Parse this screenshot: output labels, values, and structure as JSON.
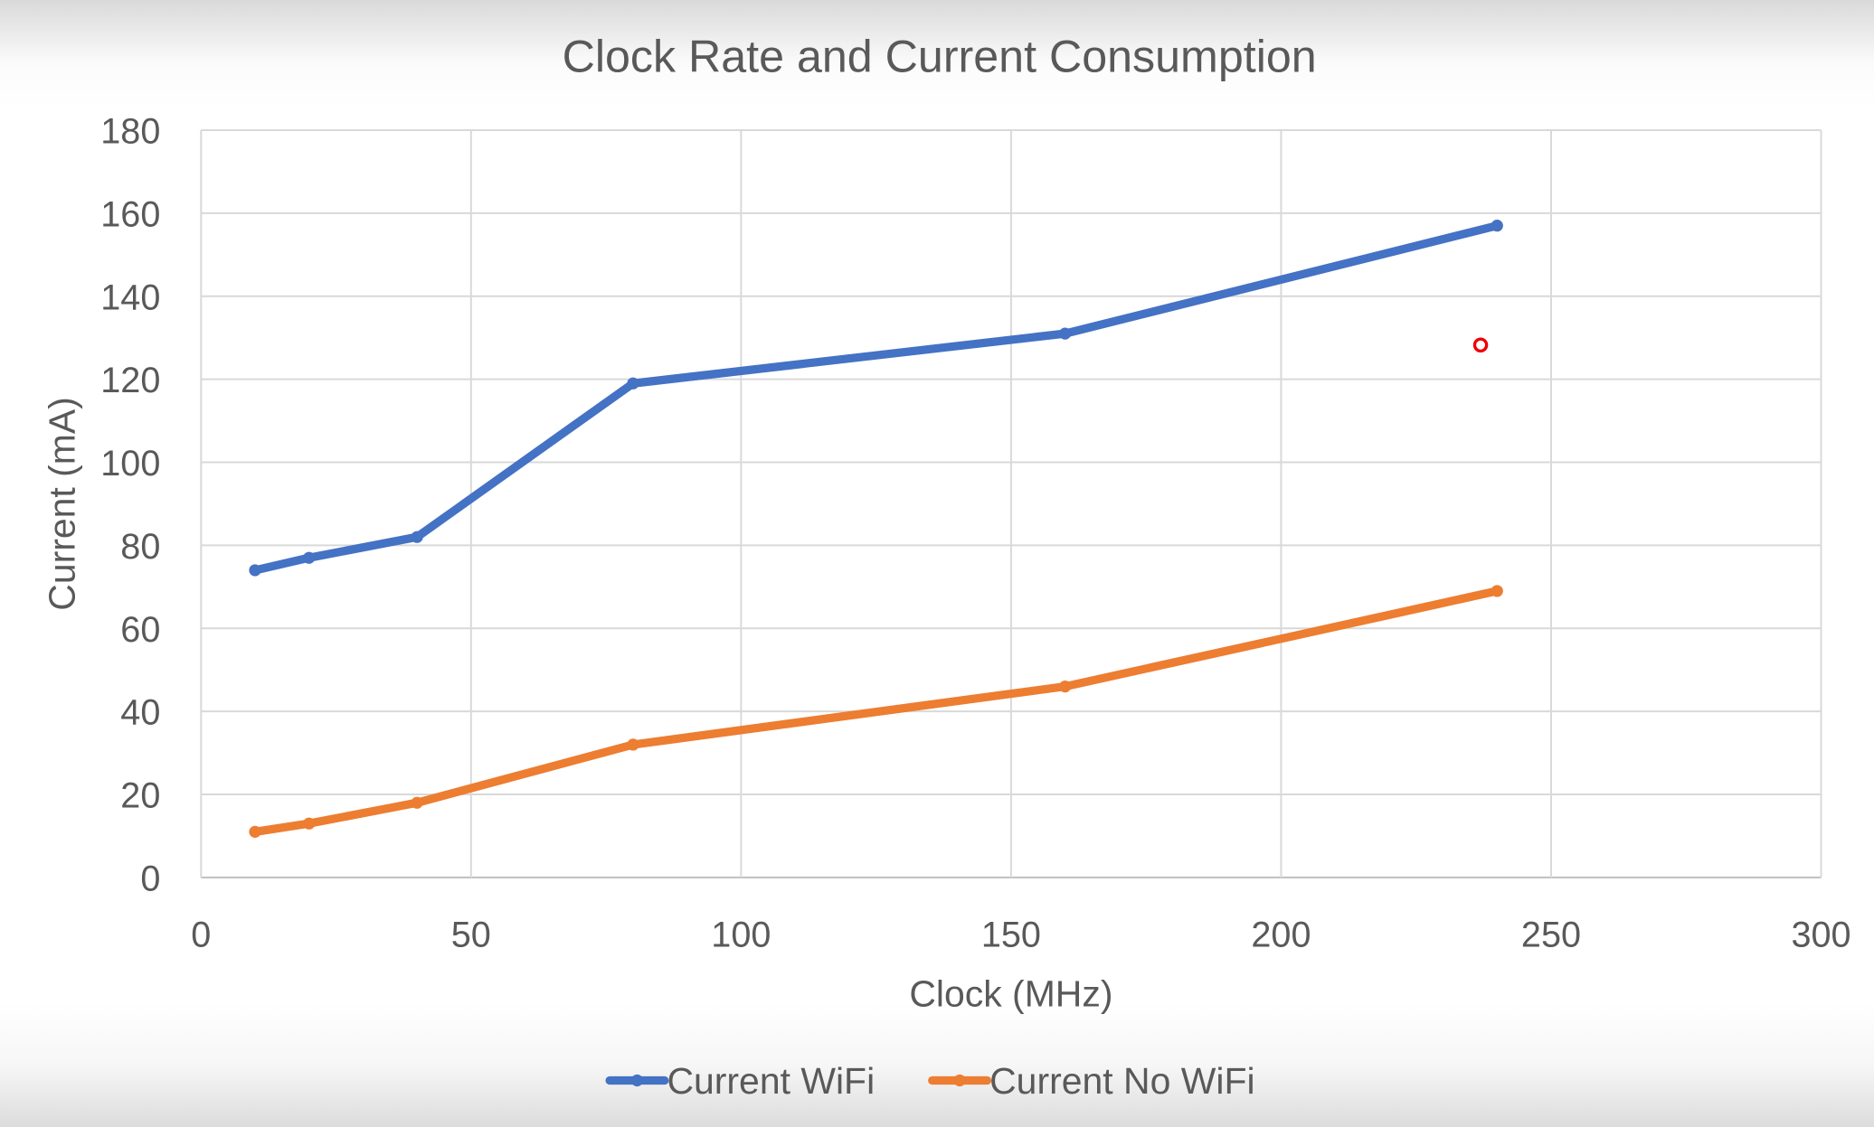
{
  "chart_data": {
    "type": "line",
    "title": "Clock Rate and Current Consumption",
    "xlabel": "Clock (MHz)",
    "ylabel": "Current (mA)",
    "xlim": [
      0,
      300
    ],
    "ylim": [
      0,
      180
    ],
    "xticks": [
      0,
      50,
      100,
      150,
      200,
      250,
      300
    ],
    "yticks": [
      0,
      20,
      40,
      60,
      80,
      100,
      120,
      140,
      160,
      180
    ],
    "grid": true,
    "legend": "bottom",
    "series": [
      {
        "name": "Current WiFi",
        "color": "#4472c4",
        "x": [
          10,
          20,
          40,
          80,
          160,
          240
        ],
        "y": [
          74,
          77,
          82,
          119,
          131,
          157
        ]
      },
      {
        "name": "Current No WiFi",
        "color": "#ed7d31",
        "x": [
          10,
          20,
          40,
          80,
          160,
          240
        ],
        "y": [
          11,
          13,
          18,
          32,
          46,
          69
        ]
      }
    ]
  }
}
